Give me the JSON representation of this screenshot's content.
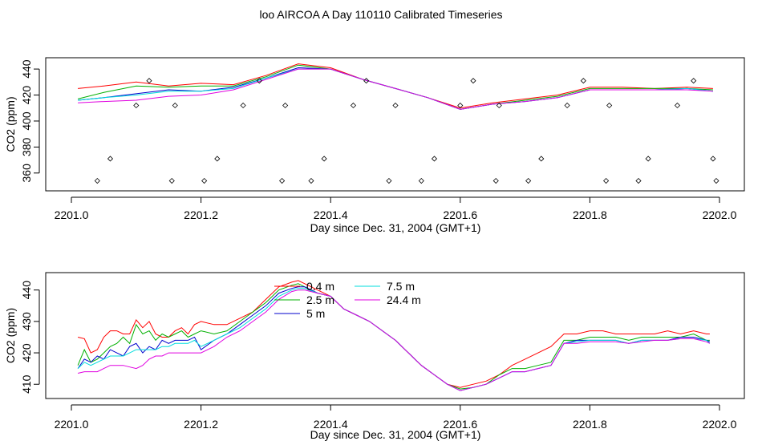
{
  "title": "loo AIRCOA A  Day 110110  Calibrated Timeseries",
  "colors": {
    "0.4 m": "#ff0000",
    "2.5 m": "#00b000",
    "5 m": "#0000cc",
    "7.5 m": "#00dddd",
    "24.4 m": "#e000e0"
  },
  "chart_data": [
    {
      "type": "line",
      "title": "",
      "xlabel": "Day since Dec. 31, 2004 (GMT+1)",
      "ylabel": "CO2 (ppm)",
      "xlim": [
        2201.0,
        2202.0
      ],
      "ylim": [
        350,
        445
      ],
      "xticks": [
        "2201.0",
        "2201.2",
        "2201.4",
        "2201.6",
        "2201.8",
        "2202.0"
      ],
      "yticks": [
        "360",
        "380",
        "400",
        "420",
        "440"
      ],
      "grid": false,
      "series": [
        {
          "key": "0.4 m",
          "x": [
            2201.01,
            2201.05,
            2201.1,
            2201.15,
            2201.2,
            2201.25,
            2201.3,
            2201.35,
            2201.4,
            2201.45,
            2201.5,
            2201.55,
            2201.6,
            2201.65,
            2201.7,
            2201.75,
            2201.8,
            2201.85,
            2201.9,
            2201.95,
            2201.99
          ],
          "y": [
            425,
            427,
            430,
            427,
            429,
            428,
            435,
            444,
            441,
            432,
            425,
            418,
            410,
            414,
            417,
            420,
            426,
            426,
            425,
            426,
            425
          ]
        },
        {
          "key": "2.5 m",
          "x": [
            2201.01,
            2201.05,
            2201.1,
            2201.15,
            2201.2,
            2201.25,
            2201.3,
            2201.35,
            2201.4,
            2201.45,
            2201.5,
            2201.55,
            2201.6,
            2201.65,
            2201.7,
            2201.75,
            2201.8,
            2201.85,
            2201.9,
            2201.95,
            2201.99
          ],
          "y": [
            417,
            422,
            427,
            426,
            427,
            427,
            434,
            443,
            440,
            432,
            425,
            418,
            409,
            413,
            416,
            419,
            425,
            425,
            425,
            425,
            424
          ]
        },
        {
          "key": "5 m",
          "x": [
            2201.01,
            2201.05,
            2201.1,
            2201.15,
            2201.2,
            2201.25,
            2201.3,
            2201.35,
            2201.4,
            2201.45,
            2201.5,
            2201.55,
            2201.6,
            2201.65,
            2201.7,
            2201.75,
            2201.8,
            2201.85,
            2201.9,
            2201.95,
            2201.99
          ],
          "y": [
            416,
            418,
            421,
            424,
            423,
            426,
            433,
            441,
            440,
            432,
            425,
            418,
            409,
            413,
            415,
            418,
            424,
            424,
            424,
            425,
            423
          ]
        },
        {
          "key": "7.5 m",
          "x": [
            2201.01,
            2201.05,
            2201.1,
            2201.15,
            2201.2,
            2201.25,
            2201.3,
            2201.35,
            2201.4,
            2201.45,
            2201.5,
            2201.55,
            2201.6,
            2201.65,
            2201.7,
            2201.75,
            2201.8,
            2201.85,
            2201.9,
            2201.95,
            2201.99
          ],
          "y": [
            416,
            418,
            420,
            423,
            423,
            425,
            433,
            440,
            440,
            432,
            425,
            418,
            409,
            413,
            415,
            418,
            424,
            424,
            424,
            425,
            423
          ]
        },
        {
          "key": "24.4 m",
          "x": [
            2201.01,
            2201.05,
            2201.1,
            2201.15,
            2201.2,
            2201.25,
            2201.3,
            2201.35,
            2201.4,
            2201.45,
            2201.5,
            2201.55,
            2201.6,
            2201.65,
            2201.7,
            2201.75,
            2201.8,
            2201.85,
            2201.9,
            2201.95,
            2201.99
          ],
          "y": [
            414,
            415,
            416,
            419,
            420,
            424,
            432,
            440,
            440,
            432,
            425,
            418,
            409,
            413,
            415,
            418,
            424,
            424,
            424,
            424,
            423
          ]
        }
      ],
      "markers": {
        "symbol": "diamond",
        "x": [
          2201.04,
          2201.06,
          2201.1,
          2201.12,
          2201.155,
          2201.16,
          2201.205,
          2201.225,
          2201.265,
          2201.29,
          2201.325,
          2201.33,
          2201.37,
          2201.39,
          2201.435,
          2201.455,
          2201.49,
          2201.5,
          2201.54,
          2201.56,
          2201.6,
          2201.62,
          2201.655,
          2201.66,
          2201.705,
          2201.725,
          2201.765,
          2201.79,
          2201.825,
          2201.83,
          2201.875,
          2201.89,
          2201.935,
          2201.96,
          2201.99,
          2201.995
        ],
        "y": [
          354,
          371,
          412,
          431,
          354,
          412,
          354,
          371,
          412,
          431,
          354,
          412,
          354,
          371,
          412,
          431,
          354,
          412,
          354,
          371,
          412,
          431,
          354,
          412,
          354,
          371,
          412,
          431,
          354,
          412,
          354,
          371,
          412,
          431,
          371,
          354
        ]
      }
    },
    {
      "type": "line",
      "title": "",
      "xlabel": "Day since Dec. 31, 2004 (GMT+1)",
      "ylabel": "CO2 (ppm)",
      "xlim": [
        2201.0,
        2202.0
      ],
      "ylim": [
        407,
        444
      ],
      "xticks": [
        "2201.0",
        "2201.2",
        "2201.4",
        "2201.6",
        "2201.8",
        "2202.0"
      ],
      "yticks": [
        "410",
        "420",
        "430",
        "440"
      ],
      "grid": false,
      "legend": {
        "position": "top-center",
        "columns": 2,
        "items": [
          "0.4 m",
          "2.5 m",
          "5 m",
          "7.5 m",
          "24.4 m"
        ]
      },
      "series": [
        {
          "key": "0.4 m",
          "name": "0.4 m",
          "x": [
            2201.01,
            2201.02,
            2201.03,
            2201.04,
            2201.05,
            2201.06,
            2201.07,
            2201.08,
            2201.09,
            2201.1,
            2201.11,
            2201.12,
            2201.13,
            2201.14,
            2201.15,
            2201.16,
            2201.17,
            2201.18,
            2201.19,
            2201.2,
            2201.22,
            2201.24,
            2201.26,
            2201.28,
            2201.3,
            2201.32,
            2201.34,
            2201.35,
            2201.36,
            2201.38,
            2201.4,
            2201.42,
            2201.44,
            2201.46,
            2201.48,
            2201.5,
            2201.52,
            2201.54,
            2201.56,
            2201.58,
            2201.6,
            2201.62,
            2201.64,
            2201.66,
            2201.68,
            2201.7,
            2201.72,
            2201.74,
            2201.76,
            2201.78,
            2201.8,
            2201.82,
            2201.84,
            2201.86,
            2201.88,
            2201.9,
            2201.92,
            2201.94,
            2201.96,
            2201.98,
            2201.985
          ],
          "y": [
            425,
            424.5,
            420,
            421,
            425,
            427,
            427,
            426,
            426,
            430.5,
            428,
            430,
            426,
            425,
            425,
            427,
            428,
            426,
            429,
            430,
            429,
            429,
            431,
            433,
            437,
            441,
            442.5,
            443,
            442,
            440,
            438,
            434,
            432,
            430,
            427,
            424,
            420,
            416,
            413,
            410,
            409,
            410,
            411,
            413,
            416,
            418,
            420,
            422,
            426,
            426,
            427,
            427,
            426,
            426,
            426,
            426,
            427,
            426,
            427,
            426,
            426
          ]
        },
        {
          "key": "2.5 m",
          "name": "2.5 m",
          "x": [
            2201.01,
            2201.02,
            2201.03,
            2201.04,
            2201.05,
            2201.06,
            2201.07,
            2201.08,
            2201.09,
            2201.1,
            2201.11,
            2201.12,
            2201.13,
            2201.14,
            2201.15,
            2201.16,
            2201.17,
            2201.18,
            2201.19,
            2201.2,
            2201.22,
            2201.24,
            2201.26,
            2201.28,
            2201.3,
            2201.32,
            2201.34,
            2201.35,
            2201.36,
            2201.38,
            2201.4,
            2201.42,
            2201.44,
            2201.46,
            2201.48,
            2201.5,
            2201.52,
            2201.54,
            2201.56,
            2201.58,
            2201.6,
            2201.62,
            2201.64,
            2201.66,
            2201.68,
            2201.7,
            2201.72,
            2201.74,
            2201.76,
            2201.78,
            2201.8,
            2201.82,
            2201.84,
            2201.86,
            2201.88,
            2201.9,
            2201.92,
            2201.94,
            2201.96,
            2201.98,
            2201.985
          ],
          "y": [
            416,
            421,
            417,
            418,
            420,
            422,
            423,
            425,
            423,
            429,
            426,
            427,
            424,
            426,
            425,
            426,
            427,
            425,
            426,
            427,
            426,
            427,
            430,
            433,
            436,
            440,
            441.5,
            442,
            441,
            439,
            438,
            434,
            432,
            430,
            427,
            424,
            420,
            416,
            413,
            410,
            408.5,
            409,
            410,
            413,
            415,
            415,
            416,
            417,
            424,
            424,
            425,
            425,
            425,
            424,
            425,
            425,
            425,
            425,
            426,
            424,
            424
          ]
        },
        {
          "key": "5 m",
          "name": "5 m",
          "x": [
            2201.01,
            2201.02,
            2201.03,
            2201.04,
            2201.05,
            2201.06,
            2201.07,
            2201.08,
            2201.09,
            2201.1,
            2201.11,
            2201.12,
            2201.13,
            2201.14,
            2201.15,
            2201.16,
            2201.17,
            2201.18,
            2201.19,
            2201.2,
            2201.22,
            2201.24,
            2201.26,
            2201.28,
            2201.3,
            2201.32,
            2201.34,
            2201.35,
            2201.36,
            2201.38,
            2201.4,
            2201.42,
            2201.44,
            2201.46,
            2201.48,
            2201.5,
            2201.52,
            2201.54,
            2201.56,
            2201.58,
            2201.6,
            2201.62,
            2201.64,
            2201.66,
            2201.68,
            2201.7,
            2201.72,
            2201.74,
            2201.76,
            2201.78,
            2201.8,
            2201.82,
            2201.84,
            2201.86,
            2201.88,
            2201.9,
            2201.92,
            2201.94,
            2201.96,
            2201.98,
            2201.985
          ],
          "y": [
            415,
            418,
            417,
            419,
            418,
            421,
            420,
            419,
            422,
            423,
            420,
            422,
            421,
            424,
            423,
            424,
            424,
            424,
            425,
            421,
            424,
            426,
            429,
            432,
            435,
            439,
            440.5,
            441,
            441,
            439,
            438,
            434,
            432,
            430,
            427,
            424,
            420,
            416,
            413,
            410,
            408,
            409,
            410,
            412,
            414,
            414,
            415,
            416,
            423,
            424,
            424,
            424,
            424,
            423,
            424,
            424,
            424,
            425,
            425,
            424,
            423.5
          ]
        },
        {
          "key": "7.5 m",
          "name": "7.5 m",
          "x": [
            2201.01,
            2201.02,
            2201.03,
            2201.04,
            2201.05,
            2201.06,
            2201.07,
            2201.08,
            2201.09,
            2201.1,
            2201.11,
            2201.12,
            2201.13,
            2201.14,
            2201.15,
            2201.16,
            2201.17,
            2201.18,
            2201.19,
            2201.2,
            2201.22,
            2201.24,
            2201.26,
            2201.28,
            2201.3,
            2201.32,
            2201.34,
            2201.35,
            2201.36,
            2201.38,
            2201.4,
            2201.42,
            2201.44,
            2201.46,
            2201.48,
            2201.5,
            2201.52,
            2201.54,
            2201.56,
            2201.58,
            2201.6,
            2201.62,
            2201.64,
            2201.66,
            2201.68,
            2201.7,
            2201.72,
            2201.74,
            2201.76,
            2201.78,
            2201.8,
            2201.82,
            2201.84,
            2201.86,
            2201.88,
            2201.9,
            2201.92,
            2201.94,
            2201.96,
            2201.98,
            2201.985
          ],
          "y": [
            415,
            417,
            416,
            417,
            418,
            419,
            419,
            419,
            420,
            421,
            421,
            421,
            421,
            422,
            422,
            423,
            423,
            423,
            424,
            422,
            424,
            426,
            428,
            431,
            434,
            438,
            440,
            440.5,
            440.5,
            439,
            438,
            434,
            432,
            430,
            427,
            424,
            420,
            416,
            413,
            410,
            408,
            409,
            410,
            412,
            414,
            414,
            415,
            416,
            423,
            423.5,
            424,
            424,
            424,
            423,
            424,
            424,
            424,
            424.5,
            424.5,
            424,
            423
          ]
        },
        {
          "key": "24.4 m",
          "name": "24.4 m",
          "x": [
            2201.01,
            2201.02,
            2201.03,
            2201.04,
            2201.05,
            2201.06,
            2201.07,
            2201.08,
            2201.09,
            2201.1,
            2201.11,
            2201.12,
            2201.13,
            2201.14,
            2201.15,
            2201.16,
            2201.17,
            2201.18,
            2201.19,
            2201.2,
            2201.22,
            2201.24,
            2201.26,
            2201.28,
            2201.3,
            2201.32,
            2201.34,
            2201.35,
            2201.36,
            2201.38,
            2201.4,
            2201.42,
            2201.44,
            2201.46,
            2201.48,
            2201.5,
            2201.52,
            2201.54,
            2201.56,
            2201.58,
            2201.6,
            2201.62,
            2201.64,
            2201.66,
            2201.68,
            2201.7,
            2201.72,
            2201.74,
            2201.76,
            2201.78,
            2201.8,
            2201.82,
            2201.84,
            2201.86,
            2201.88,
            2201.9,
            2201.92,
            2201.94,
            2201.96,
            2201.98,
            2201.985
          ],
          "y": [
            413.5,
            414,
            414,
            414,
            415,
            416,
            416,
            416,
            415.5,
            415,
            416,
            418,
            419,
            419,
            420,
            420,
            420,
            420,
            420,
            420,
            422,
            425,
            427,
            430,
            433,
            437,
            439.5,
            440,
            440,
            439,
            438,
            434,
            432,
            430,
            427,
            424,
            420,
            416,
            413,
            410,
            408,
            409,
            410,
            412,
            414,
            414,
            415,
            416,
            423,
            423,
            423.5,
            423.5,
            423.5,
            423,
            423.5,
            424,
            424,
            424.5,
            424.5,
            423.5,
            423
          ]
        }
      ]
    }
  ]
}
